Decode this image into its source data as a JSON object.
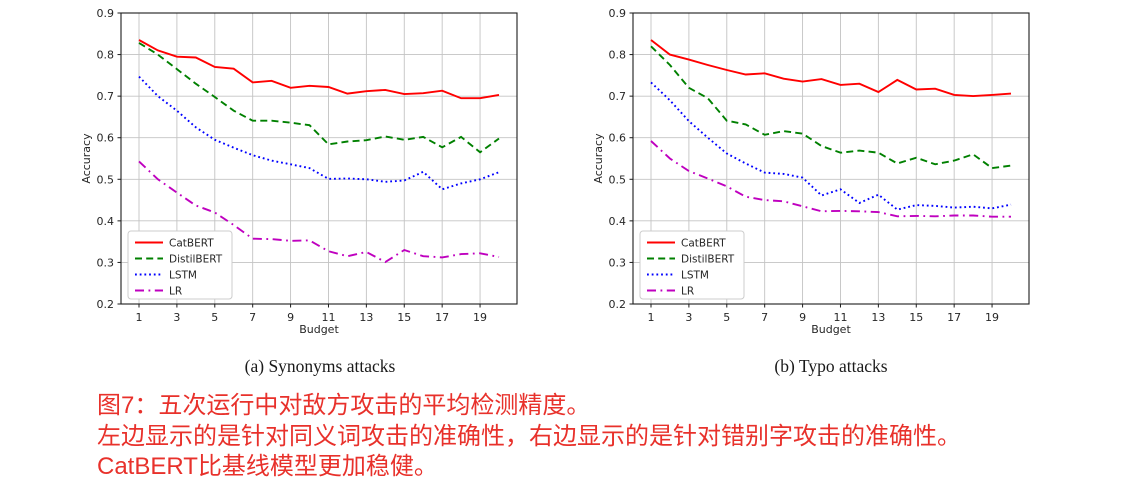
{
  "colors": {
    "catbert": "#ff0000",
    "distilbert": "#008000",
    "lstm": "#0000ff",
    "lr": "#bf00bf",
    "grid": "#c3c3c3",
    "spine": "#1c1c1c",
    "caption_red": "#e8312b",
    "legend_border": "#cccccc"
  },
  "chart_data": [
    {
      "type": "line",
      "title": "(a) Synonyms attacks",
      "xlabel": "Budget",
      "ylabel": "Accuracy",
      "xlim": [
        0.05,
        20.95
      ],
      "ylim": [
        0.2,
        0.9
      ],
      "grid": true,
      "legend_position": "lower-left",
      "x": [
        1,
        2,
        3,
        4,
        5,
        6,
        7,
        8,
        9,
        10,
        11,
        12,
        13,
        14,
        15,
        16,
        17,
        18,
        19,
        20
      ],
      "xticks": [
        1,
        3,
        5,
        7,
        9,
        11,
        13,
        15,
        17,
        19
      ],
      "yticks": [
        0.2,
        0.3,
        0.4,
        0.5,
        0.6,
        0.7,
        0.8,
        0.9
      ],
      "series": [
        {
          "name": "CatBERT",
          "color": "#ff0000",
          "style": "solid",
          "values": [
            0.835,
            0.81,
            0.795,
            0.793,
            0.77,
            0.766,
            0.733,
            0.737,
            0.72,
            0.725,
            0.722,
            0.706,
            0.712,
            0.715,
            0.705,
            0.707,
            0.713,
            0.695,
            0.695,
            0.703
          ]
        },
        {
          "name": "DistilBERT",
          "color": "#008000",
          "style": "dashed",
          "values": [
            0.828,
            0.8,
            0.765,
            0.73,
            0.698,
            0.665,
            0.641,
            0.641,
            0.636,
            0.63,
            0.584,
            0.591,
            0.594,
            0.603,
            0.595,
            0.602,
            0.577,
            0.602,
            0.565,
            0.598
          ]
        },
        {
          "name": "LSTM",
          "color": "#0000ff",
          "style": "dotted",
          "values": [
            0.747,
            0.7,
            0.665,
            0.625,
            0.595,
            0.576,
            0.558,
            0.545,
            0.536,
            0.527,
            0.501,
            0.502,
            0.5,
            0.494,
            0.497,
            0.518,
            0.476,
            0.49,
            0.5,
            0.517
          ]
        },
        {
          "name": "LR",
          "color": "#bf00bf",
          "style": "dashdot",
          "values": [
            0.543,
            0.5,
            0.468,
            0.437,
            0.42,
            0.39,
            0.357,
            0.356,
            0.352,
            0.353,
            0.327,
            0.315,
            0.325,
            0.301,
            0.33,
            0.315,
            0.312,
            0.32,
            0.322,
            0.313
          ]
        }
      ]
    },
    {
      "type": "line",
      "title": "(b) Typo attacks",
      "xlabel": "Budget",
      "ylabel": "Accuracy",
      "xlim": [
        0.05,
        20.95
      ],
      "ylim": [
        0.2,
        0.9
      ],
      "grid": true,
      "legend_position": "lower-left",
      "x": [
        1,
        2,
        3,
        4,
        5,
        6,
        7,
        8,
        9,
        10,
        11,
        12,
        13,
        14,
        15,
        16,
        17,
        18,
        19,
        20
      ],
      "xticks": [
        1,
        3,
        5,
        7,
        9,
        11,
        13,
        15,
        17,
        19
      ],
      "yticks": [
        0.2,
        0.3,
        0.4,
        0.5,
        0.6,
        0.7,
        0.8,
        0.9
      ],
      "series": [
        {
          "name": "CatBERT",
          "color": "#ff0000",
          "style": "solid",
          "values": [
            0.835,
            0.8,
            0.788,
            0.775,
            0.763,
            0.752,
            0.755,
            0.742,
            0.735,
            0.741,
            0.727,
            0.73,
            0.71,
            0.739,
            0.716,
            0.718,
            0.703,
            0.7,
            0.703,
            0.706
          ]
        },
        {
          "name": "DistilBERT",
          "color": "#008000",
          "style": "dashed",
          "values": [
            0.82,
            0.775,
            0.72,
            0.695,
            0.641,
            0.632,
            0.607,
            0.616,
            0.61,
            0.58,
            0.564,
            0.569,
            0.564,
            0.538,
            0.552,
            0.536,
            0.545,
            0.56,
            0.527,
            0.533
          ]
        },
        {
          "name": "LSTM",
          "color": "#0000ff",
          "style": "dotted",
          "values": [
            0.733,
            0.69,
            0.64,
            0.6,
            0.562,
            0.538,
            0.516,
            0.513,
            0.504,
            0.461,
            0.476,
            0.443,
            0.463,
            0.427,
            0.438,
            0.436,
            0.432,
            0.434,
            0.43,
            0.439
          ]
        },
        {
          "name": "LR",
          "color": "#bf00bf",
          "style": "dashdot",
          "values": [
            0.592,
            0.55,
            0.52,
            0.502,
            0.483,
            0.458,
            0.45,
            0.447,
            0.435,
            0.423,
            0.424,
            0.423,
            0.421,
            0.411,
            0.412,
            0.411,
            0.413,
            0.413,
            0.41,
            0.41
          ]
        }
      ]
    }
  ],
  "figure_caption": {
    "color": "#e8312b",
    "lines": [
      "图7：五次运行中对敌方攻击的平均检测精度。",
      "左边显示的是针对同义词攻击的准确性，右边显示的是针对错别字攻击的准确性。",
      "CatBERT比基线模型更加稳健。"
    ]
  }
}
